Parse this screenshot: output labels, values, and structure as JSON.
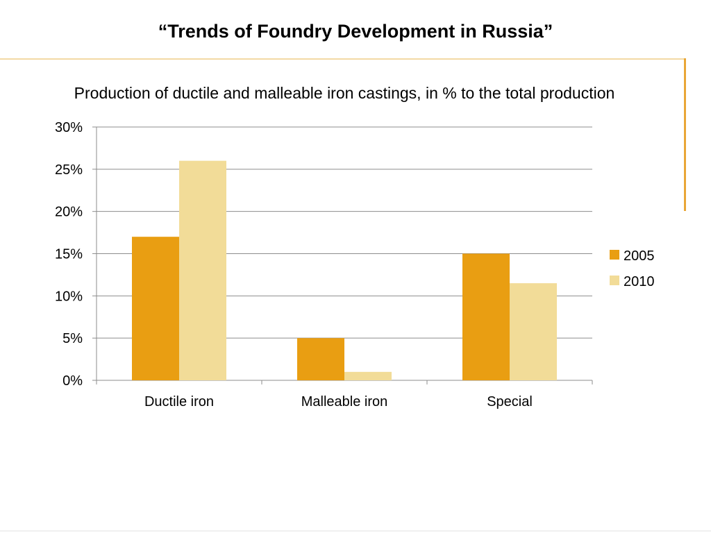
{
  "slide": {
    "title": "“Trends of Foundry Development in Russia”"
  },
  "colors": {
    "accent_frame": "#e9a636",
    "frame_light": "#f3d9a4",
    "series_2005": "#e99e12",
    "series_2010": "#f2dc98",
    "gridline": "#8c8c8c"
  },
  "chart_data": {
    "type": "bar",
    "title": "Production of ductile and malleable iron castings, in % to the total production",
    "categories": [
      "Ductile iron",
      "Malleable iron",
      "Special"
    ],
    "series": [
      {
        "name": "2005",
        "values": [
          17,
          5,
          15
        ]
      },
      {
        "name": "2010",
        "values": [
          26,
          1,
          11.5
        ]
      }
    ],
    "ylim": [
      0,
      30
    ],
    "yticks": [
      0,
      5,
      10,
      15,
      20,
      25,
      30
    ],
    "ytick_labels": [
      "0%",
      "5%",
      "10%",
      "15%",
      "20%",
      "25%",
      "30%"
    ],
    "grid": true,
    "legend_position": "right"
  }
}
